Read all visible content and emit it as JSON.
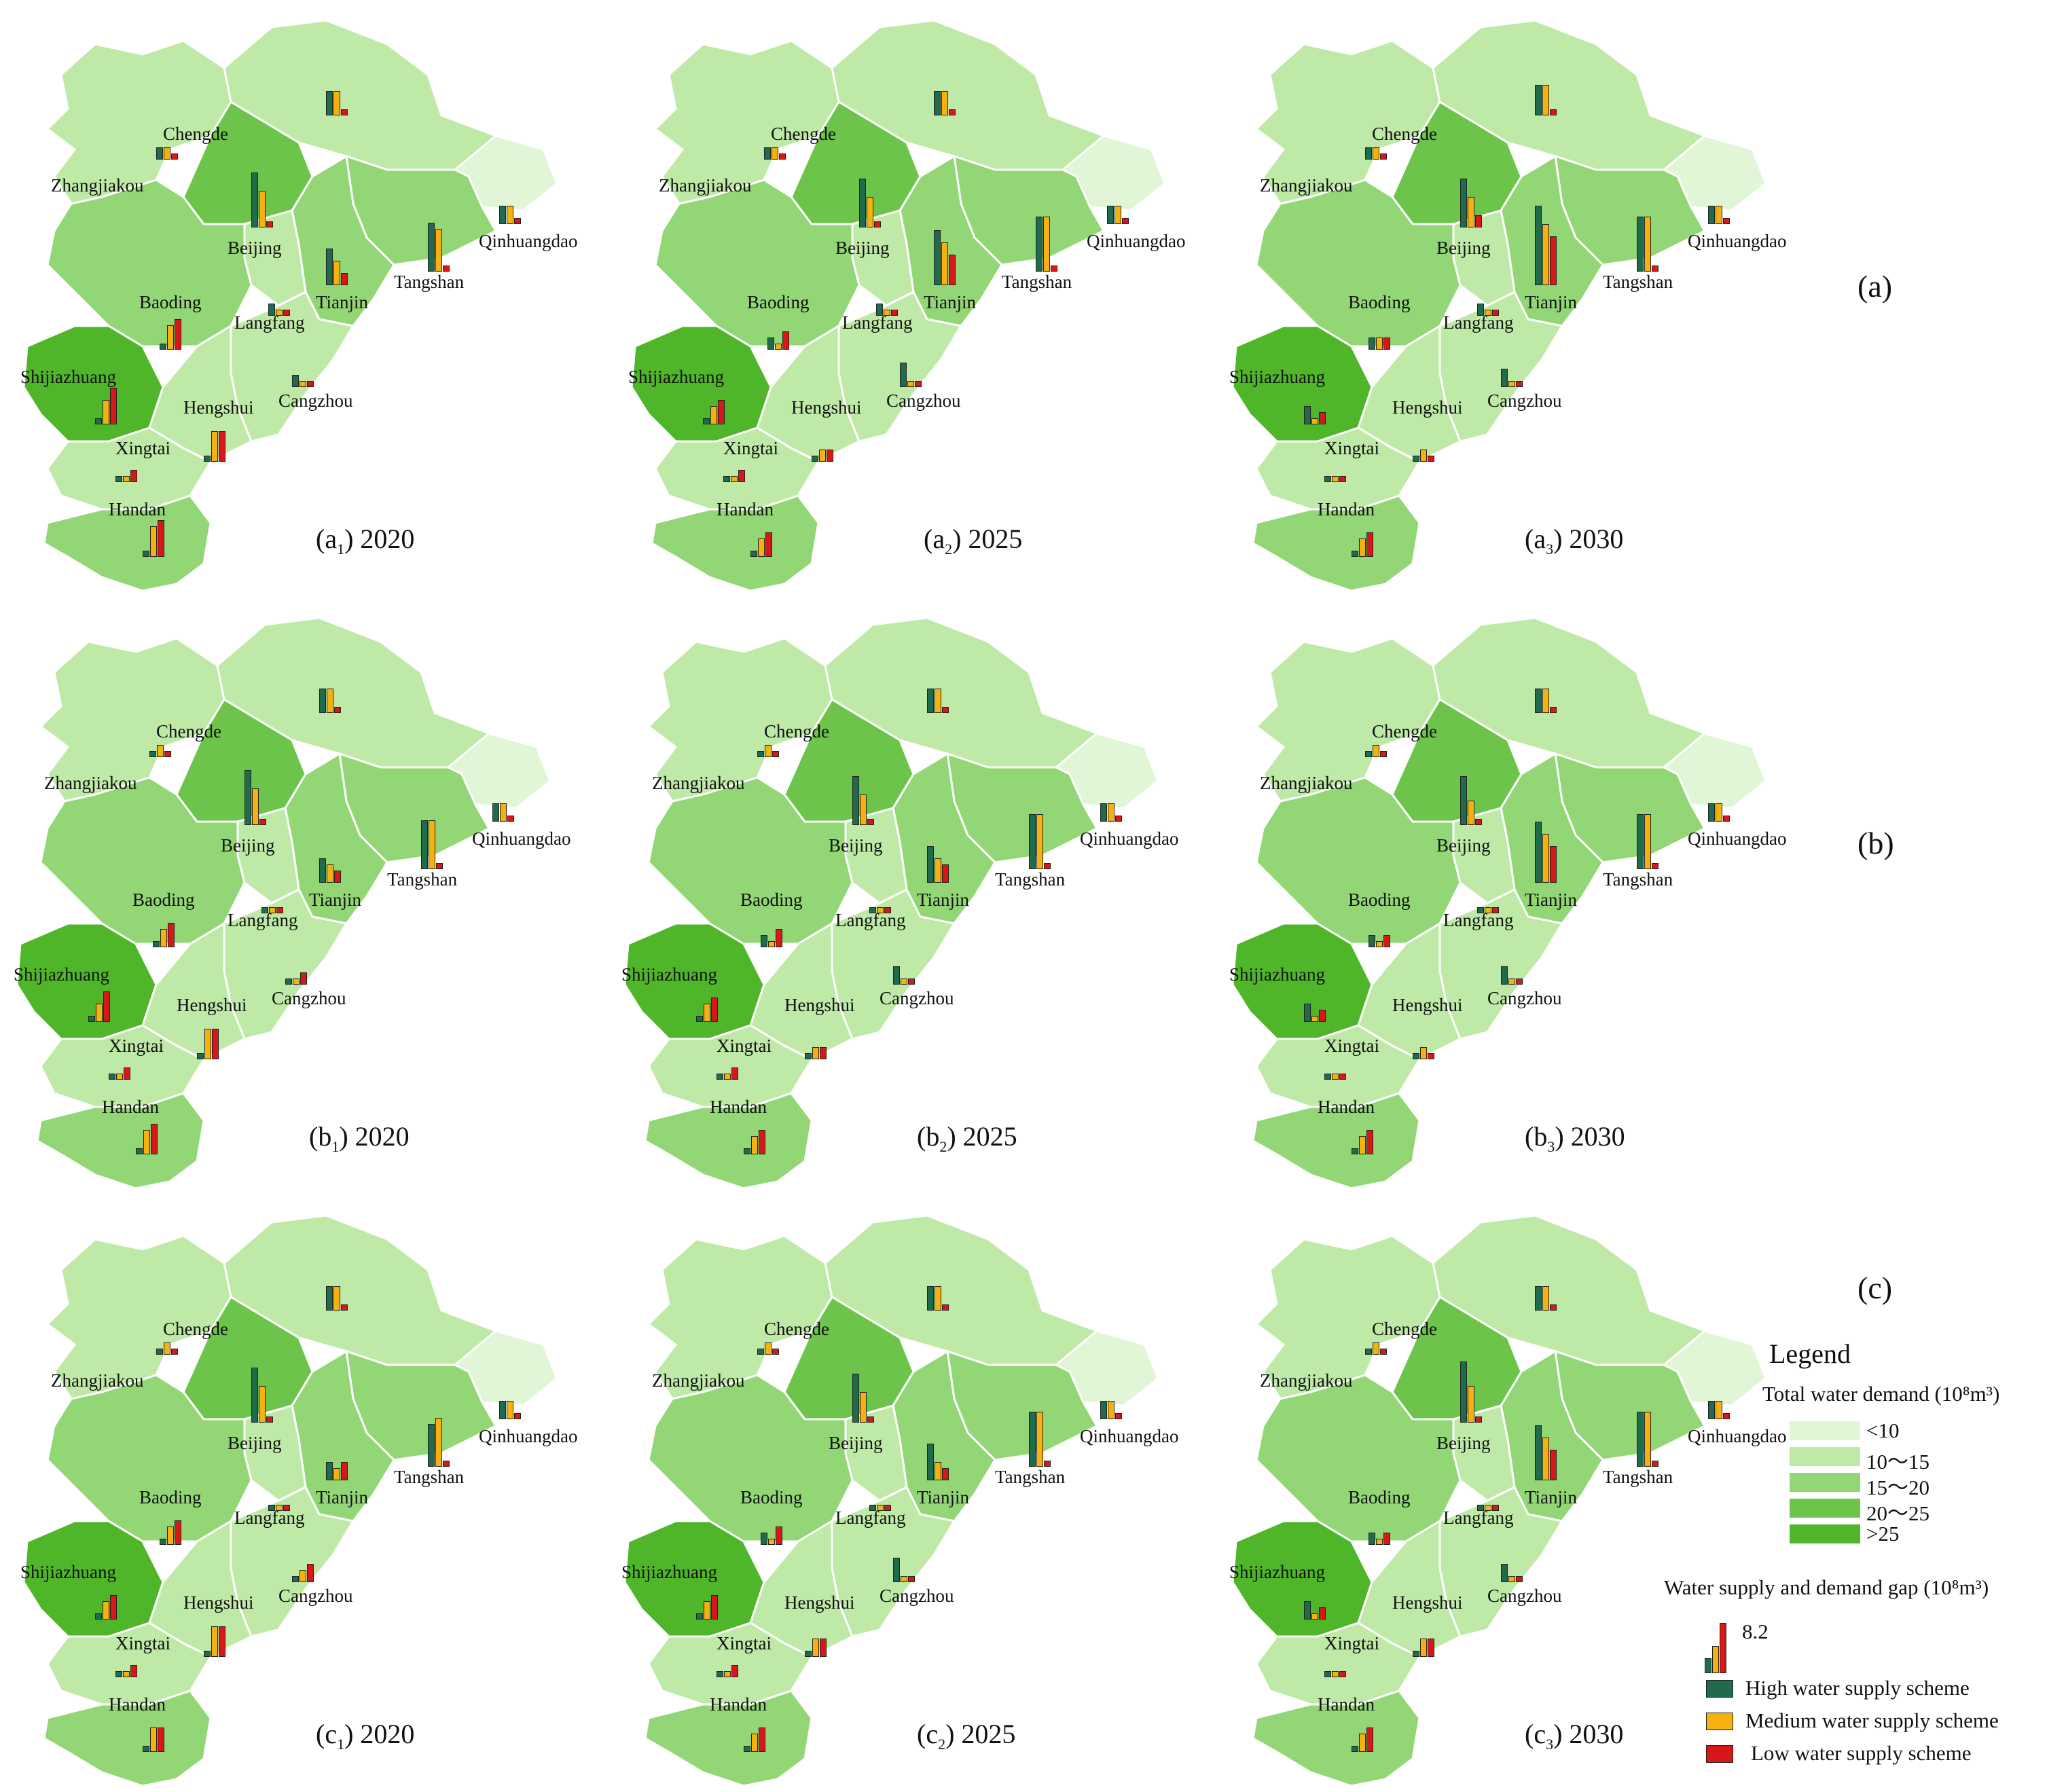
{
  "row_labels": [
    "(a)",
    "(b)",
    "(c)"
  ],
  "colors": {
    "demand_lt10": "#e1f5d7",
    "demand_10_15": "#bfe9a6",
    "demand_15_20": "#93d676",
    "demand_20_25": "#6cc54a",
    "demand_gt25": "#4eb628",
    "high": "#1f6b4c",
    "medium": "#f6b10f",
    "low": "#d81818"
  },
  "cities": [
    "Zhangjiakou",
    "Chengde",
    "Beijing",
    "Tianjin",
    "Tangshan",
    "Qinhuangdao",
    "Baoding",
    "Langfang",
    "Shijiazhuang",
    "Cangzhou",
    "Hengshui",
    "Xingtai",
    "Handan"
  ],
  "panels": [
    {
      "id": "a1",
      "letter": "a",
      "sub": "1",
      "year": "2020"
    },
    {
      "id": "a2",
      "letter": "a",
      "sub": "2",
      "year": "2025"
    },
    {
      "id": "a3",
      "letter": "a",
      "sub": "3",
      "year": "2030"
    },
    {
      "id": "b1",
      "letter": "b",
      "sub": "1",
      "year": "2020"
    },
    {
      "id": "b2",
      "letter": "b",
      "sub": "2",
      "year": "2025"
    },
    {
      "id": "b3",
      "letter": "b",
      "sub": "3",
      "year": "2030"
    },
    {
      "id": "c1",
      "letter": "c",
      "sub": "1",
      "year": "2020"
    },
    {
      "id": "c2",
      "letter": "c",
      "sub": "2",
      "year": "2025"
    },
    {
      "id": "c3",
      "letter": "c",
      "sub": "3",
      "year": "2030"
    }
  ],
  "legend": {
    "title": "Legend",
    "demand_title": "Total water demand (10⁸m³)",
    "demand_classes": [
      "<10",
      "10～15",
      "15～20",
      "20～25",
      ">25"
    ],
    "gap_title": "Water supply and demand gap (10⁸m³)",
    "gap_scale_value": "8.2",
    "schemes": [
      "High water supply scheme",
      "Medium water supply scheme",
      "Low water supply scheme"
    ]
  }
}
